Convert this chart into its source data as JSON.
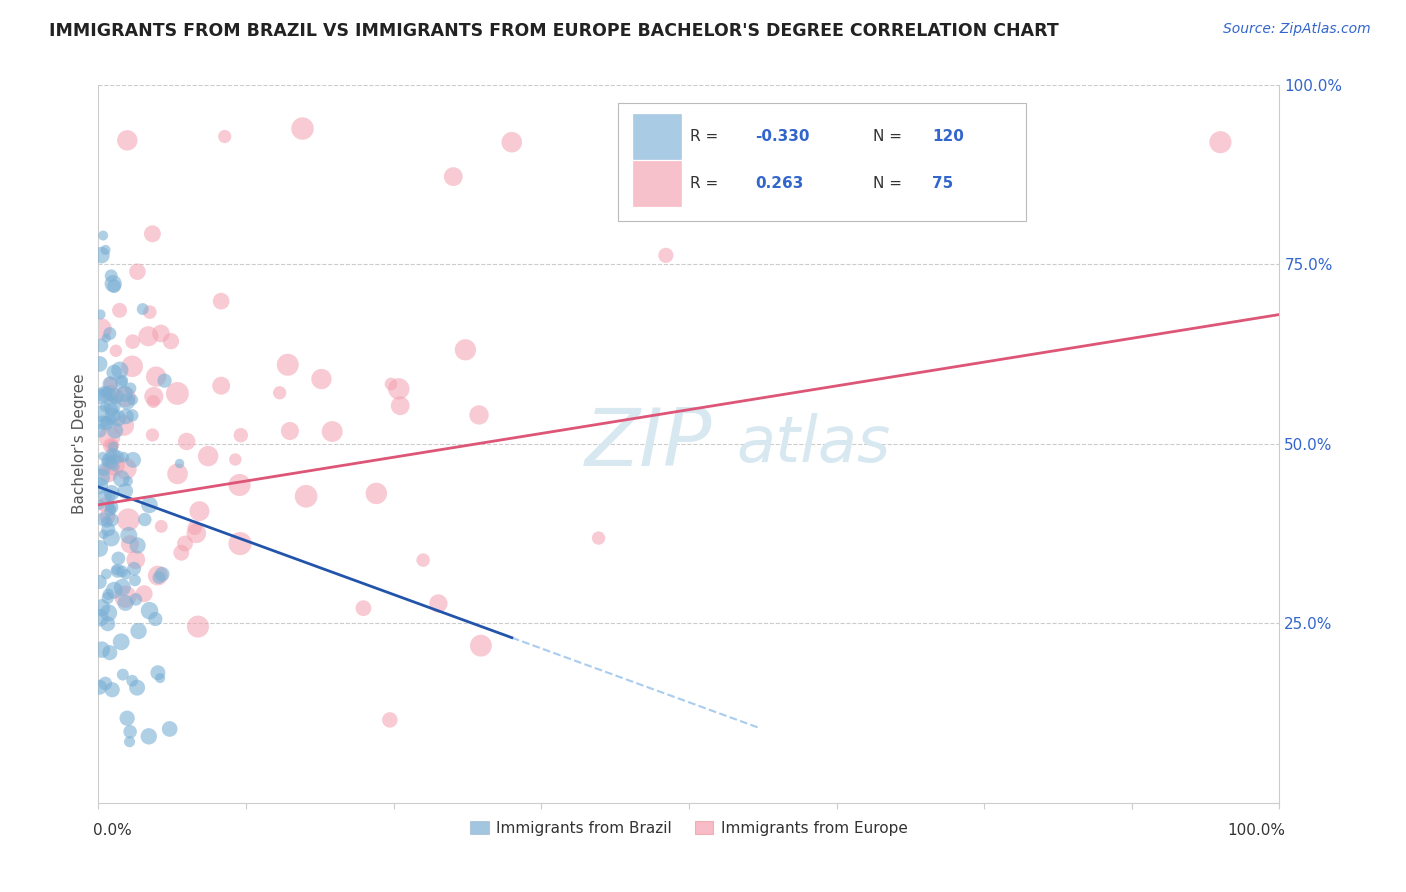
{
  "title": "IMMIGRANTS FROM BRAZIL VS IMMIGRANTS FROM EUROPE BACHELOR'S DEGREE CORRELATION CHART",
  "source_text": "Source: ZipAtlas.com",
  "ylabel": "Bachelor's Degree",
  "legend_brazil": "Immigrants from Brazil",
  "legend_europe": "Immigrants from Europe",
  "R_brazil": -0.33,
  "N_brazil": 120,
  "R_europe": 0.263,
  "N_europe": 75,
  "color_brazil": "#7BAFD4",
  "color_europe": "#F4A0B0",
  "color_brazil_line": "#2255AA",
  "color_europe_line": "#DD5577",
  "color_dashed": "#AACCEE",
  "background_color": "#FFFFFF",
  "watermark_color": "#D8E8F0",
  "title_color": "#222222",
  "source_color": "#3366CC",
  "tick_color": "#3366CC",
  "axis_color": "#CCCCCC",
  "ylabel_color": "#555555"
}
